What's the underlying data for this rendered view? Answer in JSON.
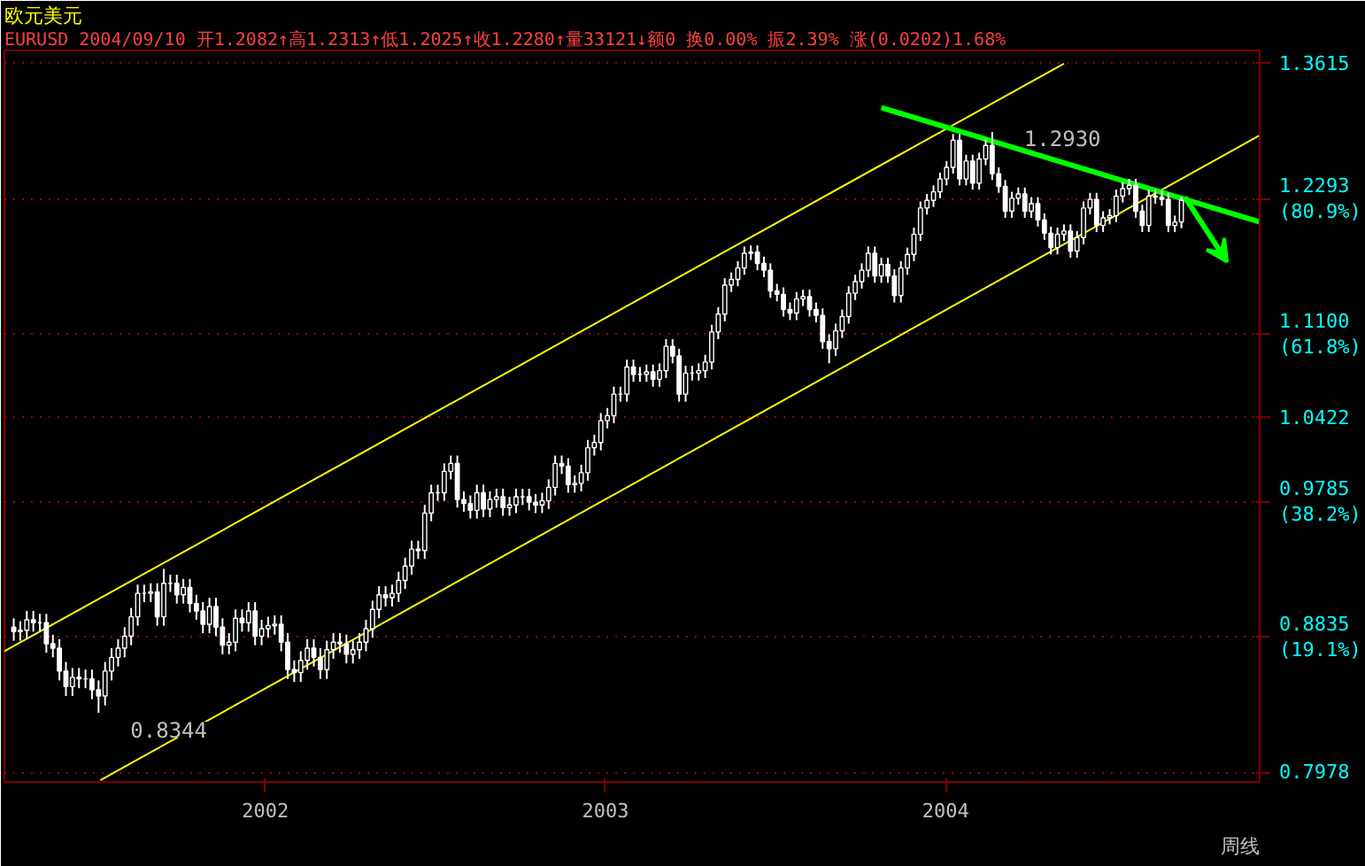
{
  "chart_data": {
    "type": "candlestick",
    "title": "欧元美元",
    "subtitle": "EURUSD 2004/09/10 开1.2082↑高1.2313↑低1.2025↑收1.2280↑量33121↓额0 换0.00% 振2.39% 涨(0.0202)1.68%",
    "color": "#ffffff",
    "log": true,
    "grid": "y",
    "xlim": [
      "2001-03-27",
      "2004-12-03"
    ],
    "xticks": [
      {
        "value": "2002-01-01",
        "label": "2002"
      },
      {
        "value": "2003-01-01",
        "label": "2003"
      },
      {
        "value": "2004-01-01",
        "label": "2004"
      }
    ],
    "ylim": [
      0.792,
      1.375
    ],
    "yticks": [
      1.3615,
      {
        "value": 1.2293,
        "label": "1.2293\n(80.9%)"
      },
      {
        "value": 1.11,
        "label": "1.1100\n(61.8%)"
      },
      1.0422,
      {
        "value": 0.9785,
        "label": "0.9785\n(38.2%)"
      },
      {
        "value": 0.8835,
        "label": "0.8835\n(19.1%)"
      },
      0.7978
    ],
    "annotations": [
      {
        "text": "1.2930",
        "x": "2004-02-20",
        "y": 1.293
      },
      {
        "text": "0.8344",
        "x": "2001-07-06",
        "y": 0.8344
      },
      "周线"
    ],
    "x": [
      "2001-04-06",
      "2001-04-13",
      "2001-04-20",
      "2001-04-27",
      "2001-05-04",
      "2001-05-11",
      "2001-05-18",
      "2001-05-25",
      "2001-06-01",
      "2001-06-08",
      "2001-06-15",
      "2001-06-22",
      "2001-06-29",
      "2001-07-06",
      "2001-07-13",
      "2001-07-20",
      "2001-07-27",
      "2001-08-03",
      "2001-08-10",
      "2001-08-17",
      "2001-08-24",
      "2001-08-31",
      "2001-09-07",
      "2001-09-14",
      "2001-09-21",
      "2001-09-28",
      "2001-10-05",
      "2001-10-12",
      "2001-10-19",
      "2001-10-26",
      "2001-11-02",
      "2001-11-09",
      "2001-11-16",
      "2001-11-23",
      "2001-11-30",
      "2001-12-07",
      "2001-12-14",
      "2001-12-21",
      "2001-12-28",
      "2002-01-04",
      "2002-01-11",
      "2002-01-18",
      "2002-01-25",
      "2002-02-01",
      "2002-02-08",
      "2002-02-15",
      "2002-02-22",
      "2002-03-01",
      "2002-03-08",
      "2002-03-15",
      "2002-03-22",
      "2002-03-29",
      "2002-04-05",
      "2002-04-12",
      "2002-04-19",
      "2002-04-26",
      "2002-05-03",
      "2002-05-10",
      "2002-05-17",
      "2002-05-24",
      "2002-05-31",
      "2002-06-07",
      "2002-06-14",
      "2002-06-21",
      "2002-06-28",
      "2002-07-05",
      "2002-07-12",
      "2002-07-19",
      "2002-07-26",
      "2002-08-02",
      "2002-08-09",
      "2002-08-16",
      "2002-08-23",
      "2002-08-30",
      "2002-09-06",
      "2002-09-13",
      "2002-09-20",
      "2002-09-27",
      "2002-10-04",
      "2002-10-11",
      "2002-10-18",
      "2002-10-25",
      "2002-11-01",
      "2002-11-08",
      "2002-11-15",
      "2002-11-22",
      "2002-11-29",
      "2002-12-06",
      "2002-12-13",
      "2002-12-20",
      "2002-12-27",
      "2003-01-03",
      "2003-01-10",
      "2003-01-17",
      "2003-01-24",
      "2003-01-31",
      "2003-02-07",
      "2003-02-14",
      "2003-02-21",
      "2003-02-28",
      "2003-03-07",
      "2003-03-14",
      "2003-03-21",
      "2003-03-28",
      "2003-04-04",
      "2003-04-11",
      "2003-04-18",
      "2003-04-25",
      "2003-05-02",
      "2003-05-09",
      "2003-05-16",
      "2003-05-23",
      "2003-05-30",
      "2003-06-06",
      "2003-06-13",
      "2003-06-20",
      "2003-06-27",
      "2003-07-04",
      "2003-07-11",
      "2003-07-18",
      "2003-07-25",
      "2003-08-01",
      "2003-08-08",
      "2003-08-15",
      "2003-08-22",
      "2003-08-29",
      "2003-09-05",
      "2003-09-12",
      "2003-09-19",
      "2003-09-26",
      "2003-10-03",
      "2003-10-10",
      "2003-10-17",
      "2003-10-24",
      "2003-10-31",
      "2003-11-07",
      "2003-11-14",
      "2003-11-21",
      "2003-11-28",
      "2003-12-05",
      "2003-12-12",
      "2003-12-19",
      "2003-12-26",
      "2004-01-02",
      "2004-01-09",
      "2004-01-16",
      "2004-01-23",
      "2004-01-30",
      "2004-02-06",
      "2004-02-13",
      "2004-02-20",
      "2004-02-27",
      "2004-03-05",
      "2004-03-12",
      "2004-03-19",
      "2004-03-26",
      "2004-04-02",
      "2004-04-09",
      "2004-04-16",
      "2004-04-23",
      "2004-04-30",
      "2004-05-07",
      "2004-05-14",
      "2004-05-21",
      "2004-05-28",
      "2004-06-04",
      "2004-06-11",
      "2004-06-18",
      "2004-06-25",
      "2004-07-02",
      "2004-07-09",
      "2004-07-16",
      "2004-07-23",
      "2004-07-30",
      "2004-08-06",
      "2004-08-13",
      "2004-08-20",
      "2004-08-27",
      "2004-09-03",
      "2004-09-10"
    ],
    "ohlc": [
      [
        0.89,
        0.896,
        0.881,
        0.887
      ],
      [
        0.887,
        0.894,
        0.881,
        0.888
      ],
      [
        0.888,
        0.901,
        0.882,
        0.895
      ],
      [
        0.895,
        0.901,
        0.887,
        0.893
      ],
      [
        0.893,
        0.899,
        0.887,
        0.893
      ],
      [
        0.893,
        0.899,
        0.873,
        0.879
      ],
      [
        0.879,
        0.885,
        0.87,
        0.876
      ],
      [
        0.876,
        0.882,
        0.855,
        0.861
      ],
      [
        0.861,
        0.867,
        0.845,
        0.851
      ],
      [
        0.851,
        0.863,
        0.845,
        0.857
      ],
      [
        0.857,
        0.863,
        0.85,
        0.856
      ],
      [
        0.856,
        0.862,
        0.85,
        0.856
      ],
      [
        0.856,
        0.862,
        0.843,
        0.849
      ],
      [
        0.849,
        0.855,
        0.8344,
        0.845
      ],
      [
        0.845,
        0.867,
        0.839,
        0.861
      ],
      [
        0.861,
        0.876,
        0.855,
        0.87
      ],
      [
        0.87,
        0.882,
        0.864,
        0.876
      ],
      [
        0.876,
        0.89,
        0.87,
        0.884
      ],
      [
        0.884,
        0.903,
        0.878,
        0.897
      ],
      [
        0.897,
        0.919,
        0.891,
        0.913
      ],
      [
        0.913,
        0.919,
        0.907,
        0.913
      ],
      [
        0.913,
        0.92,
        0.907,
        0.914
      ],
      [
        0.914,
        0.92,
        0.891,
        0.897
      ],
      [
        0.897,
        0.93,
        0.891,
        0.92
      ],
      [
        0.92,
        0.926,
        0.914,
        0.92
      ],
      [
        0.92,
        0.926,
        0.906,
        0.912
      ],
      [
        0.912,
        0.923,
        0.906,
        0.917
      ],
      [
        0.917,
        0.923,
        0.9,
        0.906
      ],
      [
        0.906,
        0.912,
        0.895,
        0.901
      ],
      [
        0.901,
        0.907,
        0.886,
        0.892
      ],
      [
        0.892,
        0.91,
        0.886,
        0.904
      ],
      [
        0.904,
        0.91,
        0.884,
        0.89
      ],
      [
        0.89,
        0.896,
        0.872,
        0.878
      ],
      [
        0.878,
        0.886,
        0.872,
        0.88
      ],
      [
        0.88,
        0.902,
        0.874,
        0.896
      ],
      [
        0.896,
        0.902,
        0.887,
        0.893
      ],
      [
        0.893,
        0.907,
        0.887,
        0.901
      ],
      [
        0.901,
        0.907,
        0.878,
        0.884
      ],
      [
        0.884,
        0.895,
        0.878,
        0.889
      ],
      [
        0.889,
        0.897,
        0.883,
        0.891
      ],
      [
        0.891,
        0.898,
        0.885,
        0.892
      ],
      [
        0.892,
        0.898,
        0.874,
        0.88
      ],
      [
        0.88,
        0.886,
        0.856,
        0.862
      ],
      [
        0.862,
        0.868,
        0.854,
        0.86
      ],
      [
        0.86,
        0.874,
        0.854,
        0.868
      ],
      [
        0.868,
        0.882,
        0.862,
        0.876
      ],
      [
        0.876,
        0.882,
        0.864,
        0.87
      ],
      [
        0.87,
        0.876,
        0.856,
        0.862
      ],
      [
        0.862,
        0.881,
        0.856,
        0.875
      ],
      [
        0.875,
        0.886,
        0.869,
        0.88
      ],
      [
        0.88,
        0.886,
        0.873,
        0.879
      ],
      [
        0.879,
        0.885,
        0.866,
        0.872
      ],
      [
        0.872,
        0.881,
        0.866,
        0.875
      ],
      [
        0.875,
        0.886,
        0.869,
        0.88
      ],
      [
        0.88,
        0.895,
        0.874,
        0.889
      ],
      [
        0.889,
        0.908,
        0.883,
        0.902
      ],
      [
        0.902,
        0.918,
        0.896,
        0.912
      ],
      [
        0.912,
        0.918,
        0.904,
        0.91
      ],
      [
        0.91,
        0.919,
        0.904,
        0.913
      ],
      [
        0.913,
        0.928,
        0.907,
        0.922
      ],
      [
        0.922,
        0.938,
        0.916,
        0.932
      ],
      [
        0.932,
        0.95,
        0.926,
        0.944
      ],
      [
        0.944,
        0.95,
        0.937,
        0.943
      ],
      [
        0.943,
        0.976,
        0.937,
        0.97
      ],
      [
        0.97,
        0.991,
        0.964,
        0.985
      ],
      [
        0.985,
        0.991,
        0.979,
        0.985
      ],
      [
        0.985,
        1.007,
        0.979,
        1.001
      ],
      [
        1.001,
        1.013,
        0.995,
        1.007
      ],
      [
        1.007,
        1.013,
        0.974,
        0.98
      ],
      [
        0.98,
        0.986,
        0.971,
        0.977
      ],
      [
        0.977,
        0.983,
        0.966,
        0.972
      ],
      [
        0.972,
        0.991,
        0.966,
        0.985
      ],
      [
        0.985,
        0.991,
        0.967,
        0.973
      ],
      [
        0.973,
        0.986,
        0.967,
        0.98
      ],
      [
        0.98,
        0.988,
        0.974,
        0.982
      ],
      [
        0.982,
        0.988,
        0.968,
        0.974
      ],
      [
        0.974,
        0.982,
        0.968,
        0.976
      ],
      [
        0.976,
        0.988,
        0.97,
        0.982
      ],
      [
        0.982,
        0.988,
        0.976,
        0.982
      ],
      [
        0.982,
        0.988,
        0.972,
        0.978
      ],
      [
        0.978,
        0.984,
        0.97,
        0.976
      ],
      [
        0.976,
        0.985,
        0.97,
        0.979
      ],
      [
        0.979,
        0.995,
        0.973,
        0.989
      ],
      [
        0.989,
        1.013,
        0.983,
        1.007
      ],
      [
        1.007,
        1.013,
        0.999,
        1.005
      ],
      [
        1.005,
        1.011,
        0.985,
        0.991
      ],
      [
        0.991,
        0.998,
        0.985,
        0.992
      ],
      [
        0.992,
        1.006,
        0.986,
        1.0
      ],
      [
        1.0,
        1.025,
        0.994,
        1.019
      ],
      [
        1.019,
        1.029,
        1.013,
        1.023
      ],
      [
        1.023,
        1.046,
        1.017,
        1.04
      ],
      [
        1.04,
        1.05,
        1.034,
        1.044
      ],
      [
        1.044,
        1.067,
        1.038,
        1.061
      ],
      [
        1.061,
        1.067,
        1.055,
        1.061
      ],
      [
        1.061,
        1.089,
        1.055,
        1.083
      ],
      [
        1.083,
        1.089,
        1.071,
        1.077
      ],
      [
        1.077,
        1.083,
        1.071,
        1.077
      ],
      [
        1.077,
        1.085,
        1.071,
        1.079
      ],
      [
        1.079,
        1.085,
        1.067,
        1.073
      ],
      [
        1.073,
        1.086,
        1.067,
        1.08
      ],
      [
        1.08,
        1.106,
        1.074,
        1.1
      ],
      [
        1.1,
        1.106,
        1.086,
        1.092
      ],
      [
        1.092,
        1.098,
        1.055,
        1.061
      ],
      [
        1.061,
        1.084,
        1.055,
        1.078
      ],
      [
        1.078,
        1.084,
        1.072,
        1.078
      ],
      [
        1.078,
        1.086,
        1.072,
        1.08
      ],
      [
        1.08,
        1.093,
        1.074,
        1.087
      ],
      [
        1.087,
        1.118,
        1.081,
        1.112
      ],
      [
        1.112,
        1.133,
        1.106,
        1.127
      ],
      [
        1.127,
        1.158,
        1.121,
        1.152
      ],
      [
        1.152,
        1.163,
        1.146,
        1.157
      ],
      [
        1.157,
        1.173,
        1.151,
        1.167
      ],
      [
        1.167,
        1.186,
        1.161,
        1.18
      ],
      [
        1.18,
        1.187,
        1.174,
        1.181
      ],
      [
        1.181,
        1.187,
        1.165,
        1.171
      ],
      [
        1.171,
        1.177,
        1.159,
        1.165
      ],
      [
        1.165,
        1.171,
        1.141,
        1.147
      ],
      [
        1.147,
        1.153,
        1.138,
        1.144
      ],
      [
        1.144,
        1.15,
        1.125,
        1.131
      ],
      [
        1.131,
        1.137,
        1.122,
        1.128
      ],
      [
        1.128,
        1.146,
        1.122,
        1.14
      ],
      [
        1.14,
        1.148,
        1.134,
        1.142
      ],
      [
        1.142,
        1.148,
        1.125,
        1.131
      ],
      [
        1.131,
        1.137,
        1.12,
        1.126
      ],
      [
        1.126,
        1.132,
        1.098,
        1.104
      ],
      [
        1.104,
        1.11,
        1.086,
        1.098
      ],
      [
        1.098,
        1.119,
        1.092,
        1.113
      ],
      [
        1.113,
        1.131,
        1.107,
        1.125
      ],
      [
        1.125,
        1.151,
        1.119,
        1.145
      ],
      [
        1.145,
        1.161,
        1.139,
        1.155
      ],
      [
        1.155,
        1.171,
        1.149,
        1.165
      ],
      [
        1.165,
        1.186,
        1.159,
        1.18
      ],
      [
        1.18,
        1.186,
        1.154,
        1.16
      ],
      [
        1.16,
        1.176,
        1.154,
        1.17
      ],
      [
        1.17,
        1.176,
        1.154,
        1.16
      ],
      [
        1.16,
        1.166,
        1.137,
        1.143
      ],
      [
        1.143,
        1.173,
        1.137,
        1.167
      ],
      [
        1.167,
        1.185,
        1.161,
        1.179
      ],
      [
        1.179,
        1.203,
        1.173,
        1.197
      ],
      [
        1.197,
        1.227,
        1.191,
        1.221
      ],
      [
        1.221,
        1.234,
        1.215,
        1.228
      ],
      [
        1.228,
        1.242,
        1.222,
        1.236
      ],
      [
        1.236,
        1.254,
        1.23,
        1.248
      ],
      [
        1.248,
        1.265,
        1.242,
        1.259
      ],
      [
        1.259,
        1.291,
        1.253,
        1.285
      ],
      [
        1.285,
        1.291,
        1.242,
        1.248
      ],
      [
        1.248,
        1.271,
        1.242,
        1.265
      ],
      [
        1.265,
        1.271,
        1.238,
        1.244
      ],
      [
        1.244,
        1.273,
        1.238,
        1.267
      ],
      [
        1.267,
        1.286,
        1.261,
        1.28
      ],
      [
        1.28,
        1.293,
        1.247,
        1.253
      ],
      [
        1.253,
        1.259,
        1.235,
        1.241
      ],
      [
        1.241,
        1.247,
        1.212,
        1.218
      ],
      [
        1.218,
        1.236,
        1.212,
        1.23
      ],
      [
        1.23,
        1.24,
        1.224,
        1.234
      ],
      [
        1.234,
        1.24,
        1.212,
        1.218
      ],
      [
        1.218,
        1.231,
        1.212,
        1.225
      ],
      [
        1.225,
        1.231,
        1.204,
        1.21
      ],
      [
        1.21,
        1.216,
        1.192,
        1.198
      ],
      [
        1.198,
        1.204,
        1.179,
        1.185
      ],
      [
        1.185,
        1.203,
        1.179,
        1.197
      ],
      [
        1.197,
        1.206,
        1.191,
        1.2
      ],
      [
        1.2,
        1.206,
        1.176,
        1.182
      ],
      [
        1.182,
        1.2,
        1.176,
        1.194
      ],
      [
        1.194,
        1.227,
        1.188,
        1.221
      ],
      [
        1.221,
        1.235,
        1.215,
        1.229
      ],
      [
        1.229,
        1.235,
        1.199,
        1.205
      ],
      [
        1.205,
        1.218,
        1.199,
        1.212
      ],
      [
        1.212,
        1.22,
        1.206,
        1.214
      ],
      [
        1.214,
        1.238,
        1.208,
        1.232
      ],
      [
        1.232,
        1.245,
        1.226,
        1.239
      ],
      [
        1.239,
        1.248,
        1.233,
        1.242
      ],
      [
        1.242,
        1.248,
        1.212,
        1.218
      ],
      [
        1.218,
        1.224,
        1.199,
        1.205
      ],
      [
        1.205,
        1.238,
        1.199,
        1.232
      ],
      [
        1.232,
        1.238,
        1.225,
        1.231
      ],
      [
        1.231,
        1.237,
        1.223,
        1.229
      ],
      [
        1.229,
        1.235,
        1.199,
        1.205
      ],
      [
        1.205,
        1.214,
        1.199,
        1.208
      ],
      [
        1.2082,
        1.2313,
        1.2025,
        1.228
      ]
    ],
    "series": [
      {
        "type": "line",
        "x": [
          "2001-03-27",
          "2004-05-07"
        ],
        "values": [
          0.874,
          1.3615
        ],
        "color": "#ffff00"
      },
      {
        "type": "line",
        "x": [
          "2001-07-08",
          "2004-12-03"
        ],
        "values": [
          0.793,
          1.2897
        ],
        "color": "#ffff00"
      },
      {
        "type": "line",
        "x": [
          "2003-10-24",
          "2004-12-03"
        ],
        "values": [
          1.317,
          1.2082
        ],
        "color": "#00ff00"
      }
    ]
  }
}
